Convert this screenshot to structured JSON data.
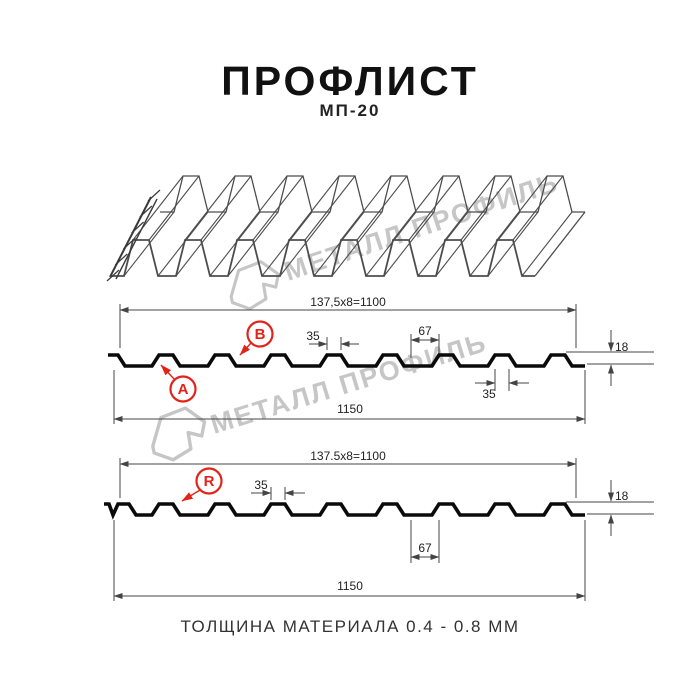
{
  "title": "ПРОФЛИСТ",
  "subtitle": "МП-20",
  "footer": "ТОЛЩИНА МАТЕРИАЛА 0.4 - 0.8 ММ",
  "watermark": {
    "text": "МЕТАЛЛ ПРОФИЛЬ",
    "color": "#c6c6c6"
  },
  "colors": {
    "accent_red": "#e2231a",
    "profile_line": "#0a0a0a",
    "dim_line": "#444444"
  },
  "diagram_top": {
    "label_a": "A",
    "label_b": "B",
    "dims": {
      "top_total": "137,5x8=1100",
      "rib_top": "35",
      "valley": "67",
      "height": "18",
      "rib_top_lower": "35",
      "overall": "1150"
    }
  },
  "diagram_bottom": {
    "label_r": "R",
    "dims": {
      "top_total": "137.5x8=1100",
      "rib_top": "35",
      "valley": "67",
      "height": "18",
      "overall": "1150"
    }
  }
}
